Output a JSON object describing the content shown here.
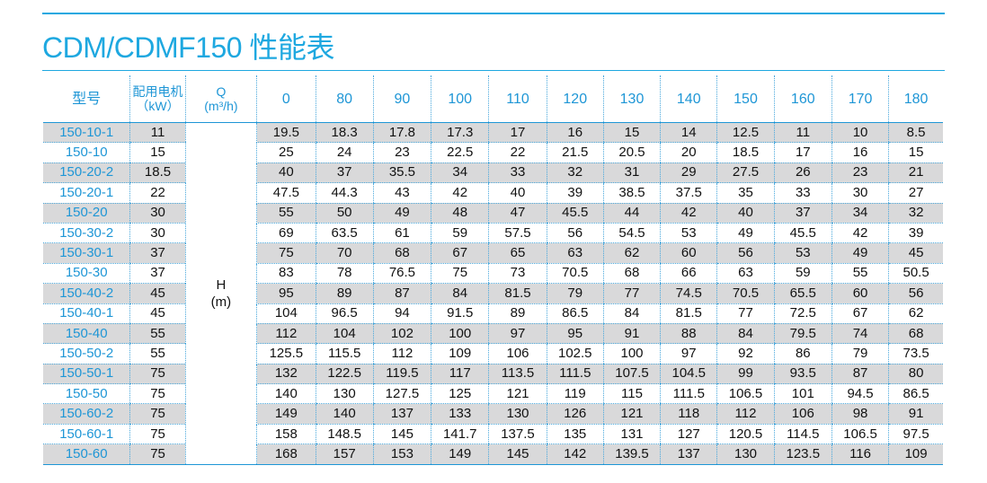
{
  "title": "CDM/CDMF150 性能表",
  "colors": {
    "accent": "#1ea8e0",
    "row_shade": "#d9d9da"
  },
  "header": {
    "model": "型号",
    "power_line1": "配用电机",
    "power_line2": "（kW）",
    "q_line1": "Q",
    "q_line2": "(m³/h)",
    "flows": [
      "0",
      "80",
      "90",
      "100",
      "110",
      "120",
      "130",
      "140",
      "150",
      "160",
      "170",
      "180"
    ]
  },
  "h_label_line1": "H",
  "h_label_line2": "(m)",
  "rows": [
    {
      "model": "150-10-1",
      "power": "11",
      "heads": [
        "19.5",
        "18.3",
        "17.8",
        "17.3",
        "17",
        "16",
        "15",
        "14",
        "12.5",
        "11",
        "10",
        "8.5"
      ]
    },
    {
      "model": "150-10",
      "power": "15",
      "heads": [
        "25",
        "24",
        "23",
        "22.5",
        "22",
        "21.5",
        "20.5",
        "20",
        "18.5",
        "17",
        "16",
        "15"
      ]
    },
    {
      "model": "150-20-2",
      "power": "18.5",
      "heads": [
        "40",
        "37",
        "35.5",
        "34",
        "33",
        "32",
        "31",
        "29",
        "27.5",
        "26",
        "23",
        "21"
      ]
    },
    {
      "model": "150-20-1",
      "power": "22",
      "heads": [
        "47.5",
        "44.3",
        "43",
        "42",
        "40",
        "39",
        "38.5",
        "37.5",
        "35",
        "33",
        "30",
        "27"
      ]
    },
    {
      "model": "150-20",
      "power": "30",
      "heads": [
        "55",
        "50",
        "49",
        "48",
        "47",
        "45.5",
        "44",
        "42",
        "40",
        "37",
        "34",
        "32"
      ]
    },
    {
      "model": "150-30-2",
      "power": "30",
      "heads": [
        "69",
        "63.5",
        "61",
        "59",
        "57.5",
        "56",
        "54.5",
        "53",
        "49",
        "45.5",
        "42",
        "39"
      ]
    },
    {
      "model": "150-30-1",
      "power": "37",
      "heads": [
        "75",
        "70",
        "68",
        "67",
        "65",
        "63",
        "62",
        "60",
        "56",
        "53",
        "49",
        "45"
      ]
    },
    {
      "model": "150-30",
      "power": "37",
      "heads": [
        "83",
        "78",
        "76.5",
        "75",
        "73",
        "70.5",
        "68",
        "66",
        "63",
        "59",
        "55",
        "50.5"
      ]
    },
    {
      "model": "150-40-2",
      "power": "45",
      "heads": [
        "95",
        "89",
        "87",
        "84",
        "81.5",
        "79",
        "77",
        "74.5",
        "70.5",
        "65.5",
        "60",
        "56"
      ]
    },
    {
      "model": "150-40-1",
      "power": "45",
      "heads": [
        "104",
        "96.5",
        "94",
        "91.5",
        "89",
        "86.5",
        "84",
        "81.5",
        "77",
        "72.5",
        "67",
        "62"
      ]
    },
    {
      "model": "150-40",
      "power": "55",
      "heads": [
        "112",
        "104",
        "102",
        "100",
        "97",
        "95",
        "91",
        "88",
        "84",
        "79.5",
        "74",
        "68"
      ]
    },
    {
      "model": "150-50-2",
      "power": "55",
      "heads": [
        "125.5",
        "115.5",
        "112",
        "109",
        "106",
        "102.5",
        "100",
        "97",
        "92",
        "86",
        "79",
        "73.5"
      ]
    },
    {
      "model": "150-50-1",
      "power": "75",
      "heads": [
        "132",
        "122.5",
        "119.5",
        "117",
        "113.5",
        "111.5",
        "107.5",
        "104.5",
        "99",
        "93.5",
        "87",
        "80"
      ]
    },
    {
      "model": "150-50",
      "power": "75",
      "heads": [
        "140",
        "130",
        "127.5",
        "125",
        "121",
        "119",
        "115",
        "111.5",
        "106.5",
        "101",
        "94.5",
        "86.5"
      ]
    },
    {
      "model": "150-60-2",
      "power": "75",
      "heads": [
        "149",
        "140",
        "137",
        "133",
        "130",
        "126",
        "121",
        "118",
        "112",
        "106",
        "98",
        "91"
      ]
    },
    {
      "model": "150-60-1",
      "power": "75",
      "heads": [
        "158",
        "148.5",
        "145",
        "141.7",
        "137.5",
        "135",
        "131",
        "127",
        "120.5",
        "114.5",
        "106.5",
        "97.5"
      ]
    },
    {
      "model": "150-60",
      "power": "75",
      "heads": [
        "168",
        "157",
        "153",
        "149",
        "145",
        "142",
        "139.5",
        "137",
        "130",
        "123.5",
        "116",
        "109"
      ]
    }
  ]
}
